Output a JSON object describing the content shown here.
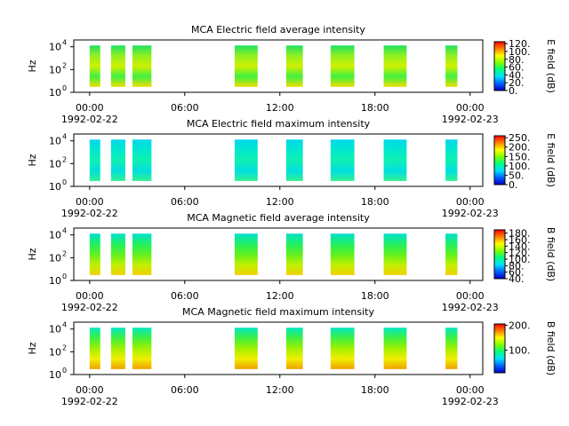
{
  "chart_data": [
    {
      "type": "spectrogram",
      "title": "MCA  Electric field average intensity",
      "ylabel": "Hz",
      "colorbar_label": "E field (dB)",
      "xlim": [
        -1,
        24.8
      ],
      "ylim": [
        1,
        40000
      ],
      "log_y": true,
      "xticks": [
        {
          "value": 0,
          "label": "00:00"
        },
        {
          "value": 6,
          "label": "06:00"
        },
        {
          "value": 12,
          "label": "12:00"
        },
        {
          "value": 18,
          "label": "18:00"
        },
        {
          "value": 24,
          "label": "00:00"
        }
      ],
      "date_labels": [
        {
          "value": 0,
          "label": "1992-02-22"
        },
        {
          "value": 24,
          "label": "1992-02-23"
        }
      ],
      "yticks": [
        {
          "value": 1,
          "label": "10",
          "exponent": "0"
        },
        {
          "value": 100,
          "label": "10",
          "exponent": "2"
        },
        {
          "value": 10000,
          "label": "10",
          "exponent": "4"
        }
      ],
      "freq_range": [
        3,
        13000
      ],
      "segments": [
        [
          0,
          0.67
        ],
        [
          1.35,
          2.25
        ],
        [
          2.7,
          3.9
        ],
        [
          9.15,
          10.6
        ],
        [
          12.4,
          13.45
        ],
        [
          15.2,
          16.7
        ],
        [
          18.55,
          20.0
        ],
        [
          22.45,
          23.2
        ]
      ],
      "fill_colors": [
        "#20e060",
        "#90f020",
        "#d0f000",
        "#40f040",
        "#f0e000"
      ],
      "clim": [
        0,
        125
      ],
      "cticks": [
        {
          "value": 0,
          "label": "0."
        },
        {
          "value": 20,
          "label": "20."
        },
        {
          "value": 40,
          "label": "40."
        },
        {
          "value": 60,
          "label": "60."
        },
        {
          "value": 80,
          "label": "80."
        },
        {
          "value": 100,
          "label": "100."
        },
        {
          "value": 120,
          "label": "120."
        }
      ],
      "colormap": [
        "#0000c0",
        "#0060ff",
        "#00e0ff",
        "#00ff80",
        "#80ff00",
        "#ffff00",
        "#ff8000",
        "#ff0000"
      ]
    },
    {
      "type": "spectrogram",
      "title": "MCA  Electric field maximum intensity",
      "ylabel": "Hz",
      "colorbar_label": "E field (dB)",
      "xlim": [
        -1,
        24.8
      ],
      "ylim": [
        1,
        40000
      ],
      "log_y": true,
      "xticks": [
        {
          "value": 0,
          "label": "00:00"
        },
        {
          "value": 6,
          "label": "06:00"
        },
        {
          "value": 12,
          "label": "12:00"
        },
        {
          "value": 18,
          "label": "18:00"
        },
        {
          "value": 24,
          "label": "00:00"
        }
      ],
      "date_labels": [
        {
          "value": 0,
          "label": "1992-02-22"
        },
        {
          "value": 24,
          "label": "1992-02-23"
        }
      ],
      "yticks": [
        {
          "value": 1,
          "label": "10",
          "exponent": "0"
        },
        {
          "value": 100,
          "label": "10",
          "exponent": "2"
        },
        {
          "value": 10000,
          "label": "10",
          "exponent": "4"
        }
      ],
      "freq_range": [
        3,
        13000
      ],
      "segments": [
        [
          0,
          0.67
        ],
        [
          1.35,
          2.25
        ],
        [
          2.7,
          3.9
        ],
        [
          9.15,
          10.6
        ],
        [
          12.4,
          13.45
        ],
        [
          15.2,
          16.7
        ],
        [
          18.55,
          20.0
        ],
        [
          22.45,
          23.2
        ]
      ],
      "fill_colors": [
        "#00d8e8",
        "#00e8d0",
        "#10f0b0",
        "#00e0e0",
        "#30f090"
      ],
      "clim": [
        0,
        260
      ],
      "cticks": [
        {
          "value": 0,
          "label": "0."
        },
        {
          "value": 50,
          "label": "50."
        },
        {
          "value": 100,
          "label": "100."
        },
        {
          "value": 150,
          "label": "150."
        },
        {
          "value": 200,
          "label": "200."
        },
        {
          "value": 250,
          "label": "250."
        }
      ],
      "colormap": [
        "#0000c0",
        "#0060ff",
        "#00e0ff",
        "#00ff80",
        "#80ff00",
        "#ffff00",
        "#ff8000",
        "#ff0000"
      ]
    },
    {
      "type": "spectrogram",
      "title": "MCA  Magnetic field average intensity",
      "ylabel": "Hz",
      "colorbar_label": "B field (dB)",
      "xlim": [
        -1,
        24.8
      ],
      "ylim": [
        1,
        40000
      ],
      "log_y": true,
      "xticks": [
        {
          "value": 0,
          "label": "00:00"
        },
        {
          "value": 6,
          "label": "06:00"
        },
        {
          "value": 12,
          "label": "12:00"
        },
        {
          "value": 18,
          "label": "18:00"
        },
        {
          "value": 24,
          "label": "00:00"
        }
      ],
      "date_labels": [
        {
          "value": 0,
          "label": "1992-02-22"
        },
        {
          "value": 24,
          "label": "1992-02-23"
        }
      ],
      "yticks": [
        {
          "value": 1,
          "label": "10",
          "exponent": "0"
        },
        {
          "value": 100,
          "label": "10",
          "exponent": "2"
        },
        {
          "value": 10000,
          "label": "10",
          "exponent": "4"
        }
      ],
      "freq_range": [
        3,
        13000
      ],
      "segments": [
        [
          0,
          0.67
        ],
        [
          1.35,
          2.25
        ],
        [
          2.7,
          3.9
        ],
        [
          9.15,
          10.6
        ],
        [
          12.4,
          13.45
        ],
        [
          15.2,
          16.7
        ],
        [
          18.55,
          20.0
        ],
        [
          22.45,
          23.2
        ]
      ],
      "fill_colors": [
        "#00e0d0",
        "#20f060",
        "#60f020",
        "#c0f000",
        "#f0d000"
      ],
      "clim": [
        40,
        190
      ],
      "cticks": [
        {
          "value": 40,
          "label": "40."
        },
        {
          "value": 60,
          "label": "60."
        },
        {
          "value": 80,
          "label": "80."
        },
        {
          "value": 100,
          "label": "100."
        },
        {
          "value": 120,
          "label": "120."
        },
        {
          "value": 140,
          "label": "140."
        },
        {
          "value": 160,
          "label": "160."
        },
        {
          "value": 180,
          "label": "180."
        }
      ],
      "colormap": [
        "#0000c0",
        "#0060ff",
        "#00e0ff",
        "#00ff80",
        "#80ff00",
        "#ffff00",
        "#ff8000",
        "#ff0000"
      ]
    },
    {
      "type": "spectrogram",
      "title": "MCA  Magnetic field maximum intensity",
      "ylabel": "Hz",
      "colorbar_label": "B field (dB)",
      "xlim": [
        -1,
        24.8
      ],
      "ylim": [
        1,
        40000
      ],
      "log_y": true,
      "xticks": [
        {
          "value": 0,
          "label": "00:00"
        },
        {
          "value": 6,
          "label": "06:00"
        },
        {
          "value": 12,
          "label": "12:00"
        },
        {
          "value": 18,
          "label": "18:00"
        },
        {
          "value": 24,
          "label": "00:00"
        }
      ],
      "date_labels": [
        {
          "value": 0,
          "label": "1992-02-22"
        },
        {
          "value": 24,
          "label": "1992-02-23"
        }
      ],
      "yticks": [
        {
          "value": 1,
          "label": "10",
          "exponent": "0"
        },
        {
          "value": 100,
          "label": "10",
          "exponent": "2"
        },
        {
          "value": 10000,
          "label": "10",
          "exponent": "4"
        }
      ],
      "freq_range": [
        3,
        13000
      ],
      "segments": [
        [
          0,
          0.67
        ],
        [
          1.35,
          2.25
        ],
        [
          2.7,
          3.9
        ],
        [
          9.15,
          10.6
        ],
        [
          12.4,
          13.45
        ],
        [
          15.2,
          16.7
        ],
        [
          18.55,
          20.0
        ],
        [
          22.45,
          23.2
        ]
      ],
      "fill_colors": [
        "#00e8c0",
        "#40f040",
        "#a0f000",
        "#f0f000",
        "#f0a000"
      ],
      "clim": [
        10,
        205
      ],
      "cticks": [
        {
          "value": 100,
          "label": "100."
        },
        {
          "value": 200,
          "label": "200."
        }
      ],
      "colormap": [
        "#0000c0",
        "#0060ff",
        "#00e0ff",
        "#00ff80",
        "#80ff00",
        "#ffff00",
        "#ff8000",
        "#ff0000"
      ]
    }
  ]
}
